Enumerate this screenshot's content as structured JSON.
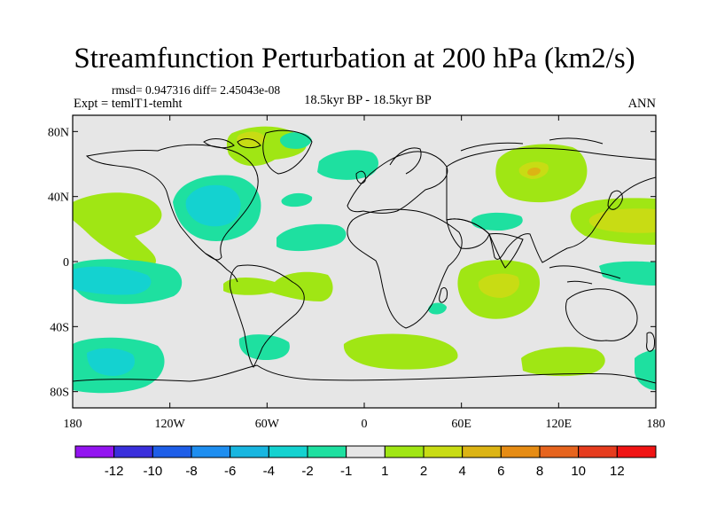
{
  "header": {
    "title": "Streamfunction Perturbation at 200 hPa (km2/s)",
    "stats": "rmsd= 0.947316 diff= 2.45043e-08",
    "experiment": "Expt = temlT1-temht",
    "period": "18.5kyr BP - 18.5kyr BP",
    "season": "ANN"
  },
  "map": {
    "lat_range": [
      -90,
      90
    ],
    "lon_range": [
      -180,
      180
    ],
    "lat_ticks": [
      "80N",
      "40N",
      "0",
      "40S",
      "80S"
    ],
    "lat_tick_values": [
      80,
      40,
      0,
      -40,
      -80
    ],
    "lon_ticks": [
      "180",
      "120W",
      "60W",
      "0",
      "60E",
      "120E",
      "180"
    ],
    "lon_tick_values": [
      -180,
      -120,
      -60,
      0,
      60,
      120,
      180
    ]
  },
  "colorbar": {
    "labels": [
      "-12",
      "-10",
      "-8",
      "-6",
      "-4",
      "-2",
      "-1",
      "1",
      "2",
      "4",
      "6",
      "8",
      "10",
      "12"
    ],
    "colors": [
      "#9314f0",
      "#3a2fdc",
      "#1e5ee8",
      "#1e8ef0",
      "#18b6e0",
      "#14d2d0",
      "#1ee0a0",
      "#e6e6e6",
      "#a0e614",
      "#c8dc14",
      "#dcb414",
      "#e68c14",
      "#e6641e",
      "#e63c1e",
      "#f01414"
    ]
  },
  "colors": {
    "background": "#e6e6e6",
    "neg1": "#1ee0a0",
    "neg2": "#14d2d0",
    "pos1": "#a0e614",
    "pos2": "#c8dc14"
  }
}
